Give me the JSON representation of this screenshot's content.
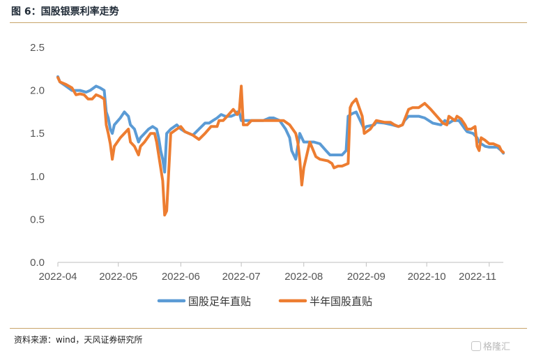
{
  "header": {
    "title": "图 6：国股银票利率走势"
  },
  "footer": {
    "source": "资料来源：wind，天风证券研究所",
    "watermark": "格隆汇"
  },
  "colors": {
    "blue": "#5b9bd5",
    "orange": "#ed7d31",
    "rule": "#c8a46a"
  },
  "chart_data": {
    "type": "line",
    "y_range": [
      0.0,
      2.5
    ],
    "y_ticks": [
      "0.0",
      "0.5",
      "1.0",
      "1.5",
      "2.0",
      "2.5"
    ],
    "x_ticks": [
      "2022-04",
      "2022-05",
      "2022-06",
      "2022-07",
      "2022-08",
      "2022-09",
      "2022-10",
      "2022-11"
    ],
    "grid": false,
    "legend_position": "bottom",
    "series": [
      {
        "name": "国股足年直贴",
        "color": "#5b9bd5",
        "x": [
          "2022-04-01",
          "2022-04-02",
          "2022-04-05",
          "2022-04-08",
          "2022-04-10",
          "2022-04-12",
          "2022-04-15",
          "2022-04-17",
          "2022-04-20",
          "2022-04-22",
          "2022-04-24",
          "2022-04-25",
          "2022-04-26",
          "2022-04-27",
          "2022-04-28",
          "2022-04-29",
          "2022-05-02",
          "2022-05-04",
          "2022-05-06",
          "2022-05-07",
          "2022-05-09",
          "2022-05-11",
          "2022-05-12",
          "2022-05-14",
          "2022-05-16",
          "2022-05-18",
          "2022-05-20",
          "2022-05-21",
          "2022-05-22",
          "2022-05-23",
          "2022-05-24",
          "2022-05-25",
          "2022-05-27",
          "2022-05-30",
          "2022-06-01",
          "2022-06-03",
          "2022-06-07",
          "2022-06-10",
          "2022-06-13",
          "2022-06-15",
          "2022-06-17",
          "2022-06-19",
          "2022-06-21",
          "2022-06-23",
          "2022-06-26",
          "2022-06-28",
          "2022-06-29",
          "2022-06-30",
          "2022-07-01",
          "2022-07-04",
          "2022-07-08",
          "2022-07-12",
          "2022-07-15",
          "2022-07-17",
          "2022-07-20",
          "2022-07-23",
          "2022-07-25",
          "2022-07-26",
          "2022-07-28",
          "2022-07-29",
          "2022-07-30",
          "2022-07-31",
          "2022-08-01",
          "2022-08-03",
          "2022-08-06",
          "2022-08-09",
          "2022-08-12",
          "2022-08-14",
          "2022-08-16",
          "2022-08-17",
          "2022-08-20",
          "2022-08-22",
          "2022-08-23",
          "2022-08-25",
          "2022-08-27",
          "2022-08-30",
          "2022-08-31",
          "2022-09-01",
          "2022-09-05",
          "2022-09-06",
          "2022-09-10",
          "2022-09-14",
          "2022-09-17",
          "2022-09-19",
          "2022-09-20",
          "2022-09-22",
          "2022-09-24",
          "2022-09-27",
          "2022-09-30",
          "2022-10-04",
          "2022-10-08",
          "2022-10-10",
          "2022-10-12",
          "2022-10-14",
          "2022-10-17",
          "2022-10-20",
          "2022-10-21",
          "2022-10-24",
          "2022-10-26",
          "2022-10-27",
          "2022-10-28",
          "2022-10-30",
          "2022-11-01",
          "2022-11-05",
          "2022-11-07",
          "2022-11-08"
        ],
        "values": [
          2.16,
          2.1,
          2.05,
          2.0,
          2.0,
          2.0,
          1.98,
          2.0,
          2.05,
          2.03,
          2.0,
          1.75,
          1.68,
          1.55,
          1.5,
          1.6,
          1.68,
          1.75,
          1.7,
          1.6,
          1.55,
          1.4,
          1.45,
          1.5,
          1.55,
          1.58,
          1.55,
          1.45,
          1.3,
          1.2,
          1.05,
          1.5,
          1.55,
          1.6,
          1.55,
          1.52,
          1.48,
          1.55,
          1.62,
          1.62,
          1.65,
          1.68,
          1.72,
          1.7,
          1.7,
          1.72,
          1.75,
          1.75,
          1.65,
          1.65,
          1.65,
          1.65,
          1.68,
          1.68,
          1.65,
          1.55,
          1.45,
          1.3,
          1.2,
          1.35,
          1.5,
          1.45,
          1.4,
          1.4,
          1.4,
          1.38,
          1.3,
          1.25,
          1.25,
          1.25,
          1.25,
          1.3,
          1.7,
          1.73,
          1.75,
          1.6,
          1.55,
          1.58,
          1.6,
          1.63,
          1.62,
          1.6,
          1.58,
          1.6,
          1.65,
          1.7,
          1.7,
          1.7,
          1.68,
          1.62,
          1.6,
          1.65,
          1.62,
          1.65,
          1.65,
          1.55,
          1.52,
          1.5,
          1.45,
          1.4,
          1.38,
          1.35,
          1.34,
          1.34,
          1.3,
          1.27
        ]
      },
      {
        "name": "半年国股直贴",
        "color": "#ed7d31",
        "x": [
          "2022-04-01",
          "2022-04-02",
          "2022-04-05",
          "2022-04-08",
          "2022-04-10",
          "2022-04-12",
          "2022-04-14",
          "2022-04-16",
          "2022-04-18",
          "2022-04-20",
          "2022-04-22",
          "2022-04-24",
          "2022-04-25",
          "2022-04-26",
          "2022-04-27",
          "2022-04-28",
          "2022-04-29",
          "2022-05-02",
          "2022-05-06",
          "2022-05-07",
          "2022-05-09",
          "2022-05-11",
          "2022-05-12",
          "2022-05-14",
          "2022-05-17",
          "2022-05-19",
          "2022-05-20",
          "2022-05-22",
          "2022-05-23",
          "2022-05-24",
          "2022-05-25",
          "2022-05-27",
          "2022-05-30",
          "2022-06-01",
          "2022-06-03",
          "2022-06-07",
          "2022-06-10",
          "2022-06-13",
          "2022-06-16",
          "2022-06-19",
          "2022-06-20",
          "2022-06-22",
          "2022-06-24",
          "2022-06-27",
          "2022-06-29",
          "2022-06-30",
          "2022-07-01",
          "2022-07-02",
          "2022-07-04",
          "2022-07-06",
          "2022-07-10",
          "2022-07-15",
          "2022-07-19",
          "2022-07-22",
          "2022-07-25",
          "2022-07-28",
          "2022-07-29",
          "2022-07-30",
          "2022-07-31",
          "2022-08-01",
          "2022-08-04",
          "2022-08-07",
          "2022-08-09",
          "2022-08-13",
          "2022-08-15",
          "2022-08-16",
          "2022-08-18",
          "2022-08-20",
          "2022-08-23",
          "2022-08-24",
          "2022-08-25",
          "2022-08-27",
          "2022-08-30",
          "2022-08-31",
          "2022-09-03",
          "2022-09-06",
          "2022-09-10",
          "2022-09-13",
          "2022-09-15",
          "2022-09-17",
          "2022-09-19",
          "2022-09-22",
          "2022-09-24",
          "2022-09-27",
          "2022-09-30",
          "2022-10-03",
          "2022-10-06",
          "2022-10-09",
          "2022-10-11",
          "2022-10-12",
          "2022-10-15",
          "2022-10-16",
          "2022-10-18",
          "2022-10-20",
          "2022-10-21",
          "2022-10-23",
          "2022-10-25",
          "2022-10-26",
          "2022-10-27",
          "2022-10-28",
          "2022-10-30",
          "2022-11-01",
          "2022-11-03",
          "2022-11-06",
          "2022-11-07",
          "2022-11-08"
        ],
        "values": [
          2.15,
          2.1,
          2.07,
          2.03,
          1.95,
          1.96,
          1.95,
          1.9,
          1.9,
          1.95,
          1.93,
          1.9,
          1.6,
          1.5,
          1.38,
          1.2,
          1.35,
          1.45,
          1.55,
          1.4,
          1.35,
          1.25,
          1.35,
          1.4,
          1.5,
          1.5,
          1.4,
          1.1,
          0.95,
          0.55,
          0.6,
          1.5,
          1.55,
          1.58,
          1.52,
          1.48,
          1.43,
          1.5,
          1.58,
          1.58,
          1.65,
          1.65,
          1.7,
          1.78,
          1.72,
          1.75,
          2.05,
          1.6,
          1.6,
          1.65,
          1.65,
          1.65,
          1.65,
          1.65,
          1.6,
          1.5,
          1.4,
          1.2,
          0.9,
          1.1,
          1.4,
          1.23,
          1.2,
          1.18,
          1.15,
          1.1,
          1.12,
          1.12,
          1.15,
          1.8,
          1.85,
          1.9,
          1.7,
          1.5,
          1.55,
          1.65,
          1.63,
          1.63,
          1.6,
          1.58,
          1.6,
          1.78,
          1.8,
          1.8,
          1.85,
          1.78,
          1.7,
          1.62,
          1.6,
          1.7,
          1.65,
          1.7,
          1.67,
          1.6,
          1.55,
          1.55,
          1.58,
          1.35,
          1.3,
          1.45,
          1.42,
          1.38,
          1.38,
          1.35,
          1.3,
          1.28
        ]
      }
    ]
  }
}
